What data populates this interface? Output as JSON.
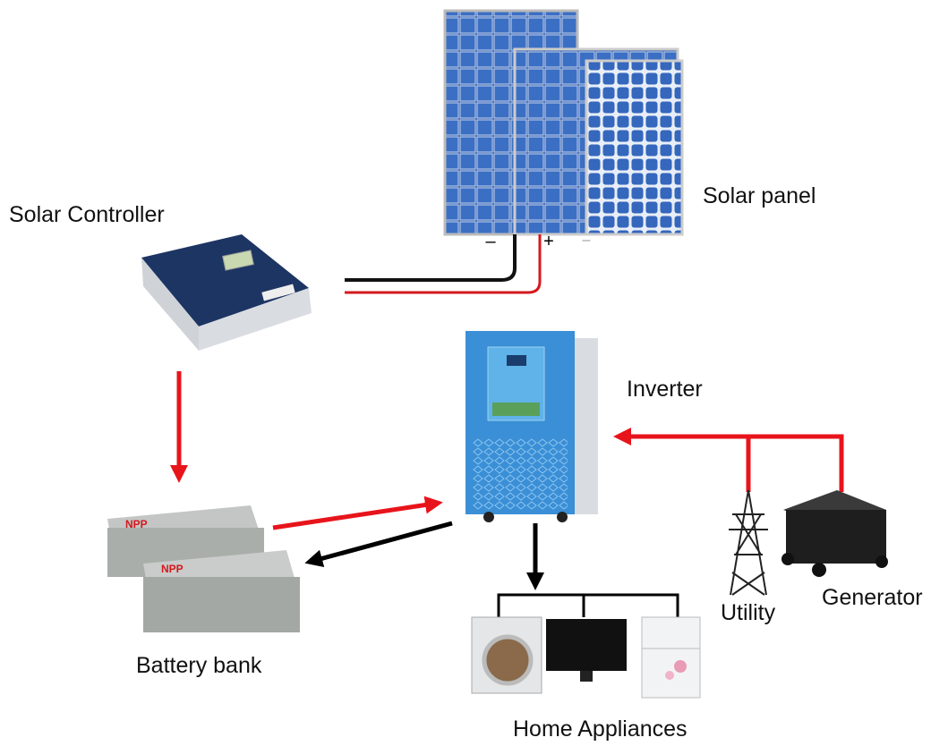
{
  "labels": {
    "solar_panel": "Solar panel",
    "solar_controller": "Solar Controller",
    "inverter": "Inverter",
    "battery_bank": "Battery bank",
    "utility": "Utility",
    "generator": "Generator",
    "home_appliances": "Home Appliances"
  },
  "terminals": [
    "–",
    "+",
    "–"
  ],
  "battery_brand": [
    "NPP",
    "NPP"
  ]
}
